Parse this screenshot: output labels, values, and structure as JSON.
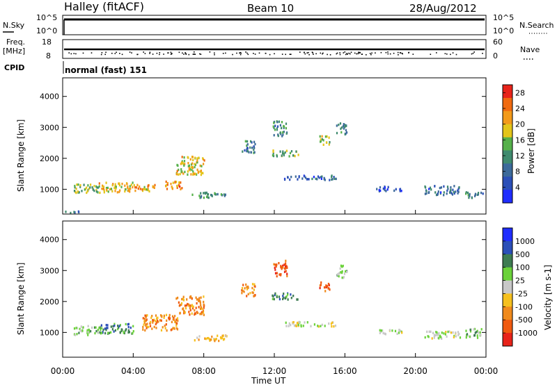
{
  "header": {
    "station": "Halley (fitACF)",
    "beam": "Beam 10",
    "date": "28/Aug/2012"
  },
  "top_panels": {
    "nsky_label": "N.Sky",
    "nsky_ticks": [
      "10^5",
      "10^0"
    ],
    "nsearch_label": "N.Search",
    "nsearch_ticks": [
      "10^5",
      "10^0"
    ],
    "freq_label": "Freq.",
    "freq_unit": "[MHz]",
    "freq_ticks": [
      "18",
      "8"
    ],
    "nave_label": "Nave",
    "nave_ticks": [
      "60",
      "0"
    ],
    "cpid_label": "CPID",
    "cpid_text": "normal (fast) 151"
  },
  "colors": {
    "power": [
      "#1f2dff",
      "#2b4fb8",
      "#3c6a9a",
      "#3f8a6e",
      "#55b04a",
      "#e3c51a",
      "#f39a1a",
      "#f06a10",
      "#e8231a"
    ],
    "velocity": [
      "#1f2dff",
      "#2b4fb8",
      "#3e7c52",
      "#6bd23a",
      "#c8c8c8",
      "#f5c01e",
      "#f08a1c",
      "#f05a10",
      "#e8231a"
    ]
  },
  "chart_data": [
    {
      "type": "heatmap",
      "ylabel": "Slant Range [km]",
      "x_ticks": [
        "00:00",
        "04:00",
        "08:00",
        "12:00",
        "16:00",
        "20:00",
        "00:00"
      ],
      "y_ticks": [
        1000,
        2000,
        3000,
        4000
      ],
      "xlim": [
        0,
        24
      ],
      "ylim": [
        200,
        4600
      ],
      "colorbar": {
        "label": "Power [dB]",
        "ticks": [
          4,
          8,
          12,
          16,
          20,
          24,
          28
        ],
        "range": [
          0,
          30
        ]
      },
      "blobs": [
        {
          "t": 0.5,
          "r": 300,
          "w": 1.2,
          "h": 60,
          "v": 6
        },
        {
          "t": 1.4,
          "r": 1050,
          "w": 1.6,
          "h": 280,
          "v": 14
        },
        {
          "t": 3.0,
          "r": 1100,
          "w": 2.0,
          "h": 320,
          "v": 18
        },
        {
          "t": 4.6,
          "r": 1050,
          "w": 1.2,
          "h": 260,
          "v": 20
        },
        {
          "t": 6.3,
          "r": 1150,
          "w": 1.0,
          "h": 280,
          "v": 22
        },
        {
          "t": 7.2,
          "r": 1800,
          "w": 1.6,
          "h": 600,
          "v": 18
        },
        {
          "t": 8.3,
          "r": 850,
          "w": 2.0,
          "h": 180,
          "v": 10
        },
        {
          "t": 10.5,
          "r": 2400,
          "w": 0.8,
          "h": 400,
          "v": 8
        },
        {
          "t": 12.3,
          "r": 3000,
          "w": 0.8,
          "h": 500,
          "v": 10
        },
        {
          "t": 12.6,
          "r": 2200,
          "w": 1.5,
          "h": 200,
          "v": 14
        },
        {
          "t": 14.8,
          "r": 2600,
          "w": 0.6,
          "h": 300,
          "v": 16
        },
        {
          "t": 15.8,
          "r": 3000,
          "w": 0.6,
          "h": 400,
          "v": 8
        },
        {
          "t": 14.0,
          "r": 1400,
          "w": 3.0,
          "h": 150,
          "v": 6
        },
        {
          "t": 18.5,
          "r": 1050,
          "w": 1.5,
          "h": 150,
          "v": 4
        },
        {
          "t": 21.5,
          "r": 1000,
          "w": 2.0,
          "h": 300,
          "v": 6
        },
        {
          "t": 23.3,
          "r": 850,
          "w": 1.0,
          "h": 200,
          "v": 10
        }
      ]
    },
    {
      "type": "heatmap",
      "xlabel": "Time UT",
      "ylabel": "Slant Range [km]",
      "x_ticks": [
        "00:00",
        "04:00",
        "08:00",
        "12:00",
        "16:00",
        "20:00",
        "00:00"
      ],
      "y_ticks": [
        1000,
        2000,
        3000,
        4000
      ],
      "xlim": [
        0,
        24
      ],
      "ylim": [
        200,
        4600
      ],
      "colorbar": {
        "label": "Velocity [m s-1]",
        "ticks": [
          1000,
          500,
          100,
          25,
          -25,
          -100,
          -500,
          -1000
        ]
      },
      "blobs": [
        {
          "t": 1.4,
          "r": 1100,
          "w": 1.6,
          "h": 300,
          "c": 3
        },
        {
          "t": 3.0,
          "r": 1150,
          "w": 2.0,
          "h": 320,
          "c": 2
        },
        {
          "t": 5.5,
          "r": 1350,
          "w": 2.0,
          "h": 500,
          "c": 6
        },
        {
          "t": 7.2,
          "r": 1900,
          "w": 1.6,
          "h": 600,
          "c": 6
        },
        {
          "t": 8.3,
          "r": 850,
          "w": 2.0,
          "h": 180,
          "c": 5
        },
        {
          "t": 10.5,
          "r": 2400,
          "w": 0.8,
          "h": 400,
          "c": 6
        },
        {
          "t": 12.3,
          "r": 3100,
          "w": 0.8,
          "h": 500,
          "c": 7
        },
        {
          "t": 12.6,
          "r": 2200,
          "w": 1.5,
          "h": 200,
          "c": 2
        },
        {
          "t": 14.8,
          "r": 2500,
          "w": 0.6,
          "h": 300,
          "c": 7
        },
        {
          "t": 15.8,
          "r": 3000,
          "w": 0.6,
          "h": 400,
          "c": 3
        },
        {
          "t": 14.0,
          "r": 1300,
          "w": 3.0,
          "h": 150,
          "c": 4
        },
        {
          "t": 18.5,
          "r": 1050,
          "w": 1.5,
          "h": 150,
          "c": 4
        },
        {
          "t": 21.5,
          "r": 950,
          "w": 2.0,
          "h": 250,
          "c": 4
        },
        {
          "t": 23.3,
          "r": 1000,
          "w": 1.0,
          "h": 300,
          "c": 3
        }
      ]
    }
  ]
}
